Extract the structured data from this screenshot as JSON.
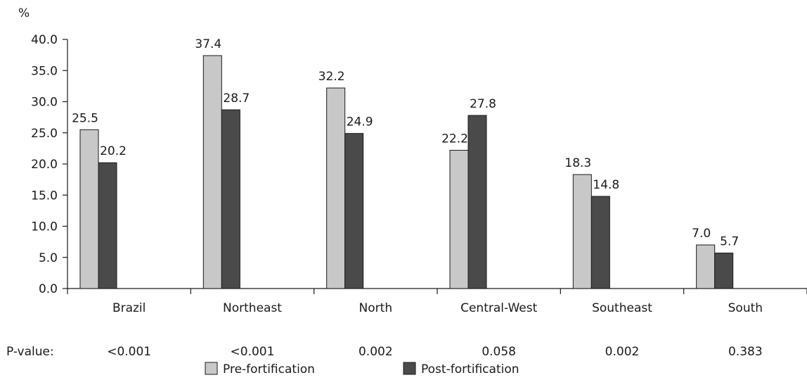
{
  "chart_data": {
    "type": "bar",
    "ylabel": "%",
    "ylim": [
      0,
      40
    ],
    "ytick_step": 5,
    "ytick_labels": [
      "0.0",
      "5.0",
      "10.0",
      "15.0",
      "20.0",
      "25.0",
      "30.0",
      "35.0",
      "40.0"
    ],
    "categories": [
      "Brazil",
      "Northeast",
      "North",
      "Central-West",
      "Southeast",
      "South"
    ],
    "series": [
      {
        "name": "Pre-fortification",
        "color": "#c8c8c8",
        "values": [
          25.5,
          37.4,
          32.2,
          22.2,
          18.3,
          7.0
        ],
        "labels": [
          "25.5",
          "37.4",
          "32.2",
          "22.2",
          "18.3",
          "7.0"
        ]
      },
      {
        "name": "Post-fortification",
        "color": "#4a4a4a",
        "values": [
          20.2,
          28.7,
          24.9,
          27.8,
          14.8,
          5.7
        ],
        "labels": [
          "20.2",
          "28.7",
          "24.9",
          "27.8",
          "14.8",
          "5.7"
        ]
      }
    ],
    "pvalue_label": "P-value:",
    "pvalues": [
      "<0.001",
      "<0.001",
      "0.002",
      "0.058",
      "0.002",
      "0.383"
    ],
    "legend_position": "bottom-center",
    "grid": false
  }
}
